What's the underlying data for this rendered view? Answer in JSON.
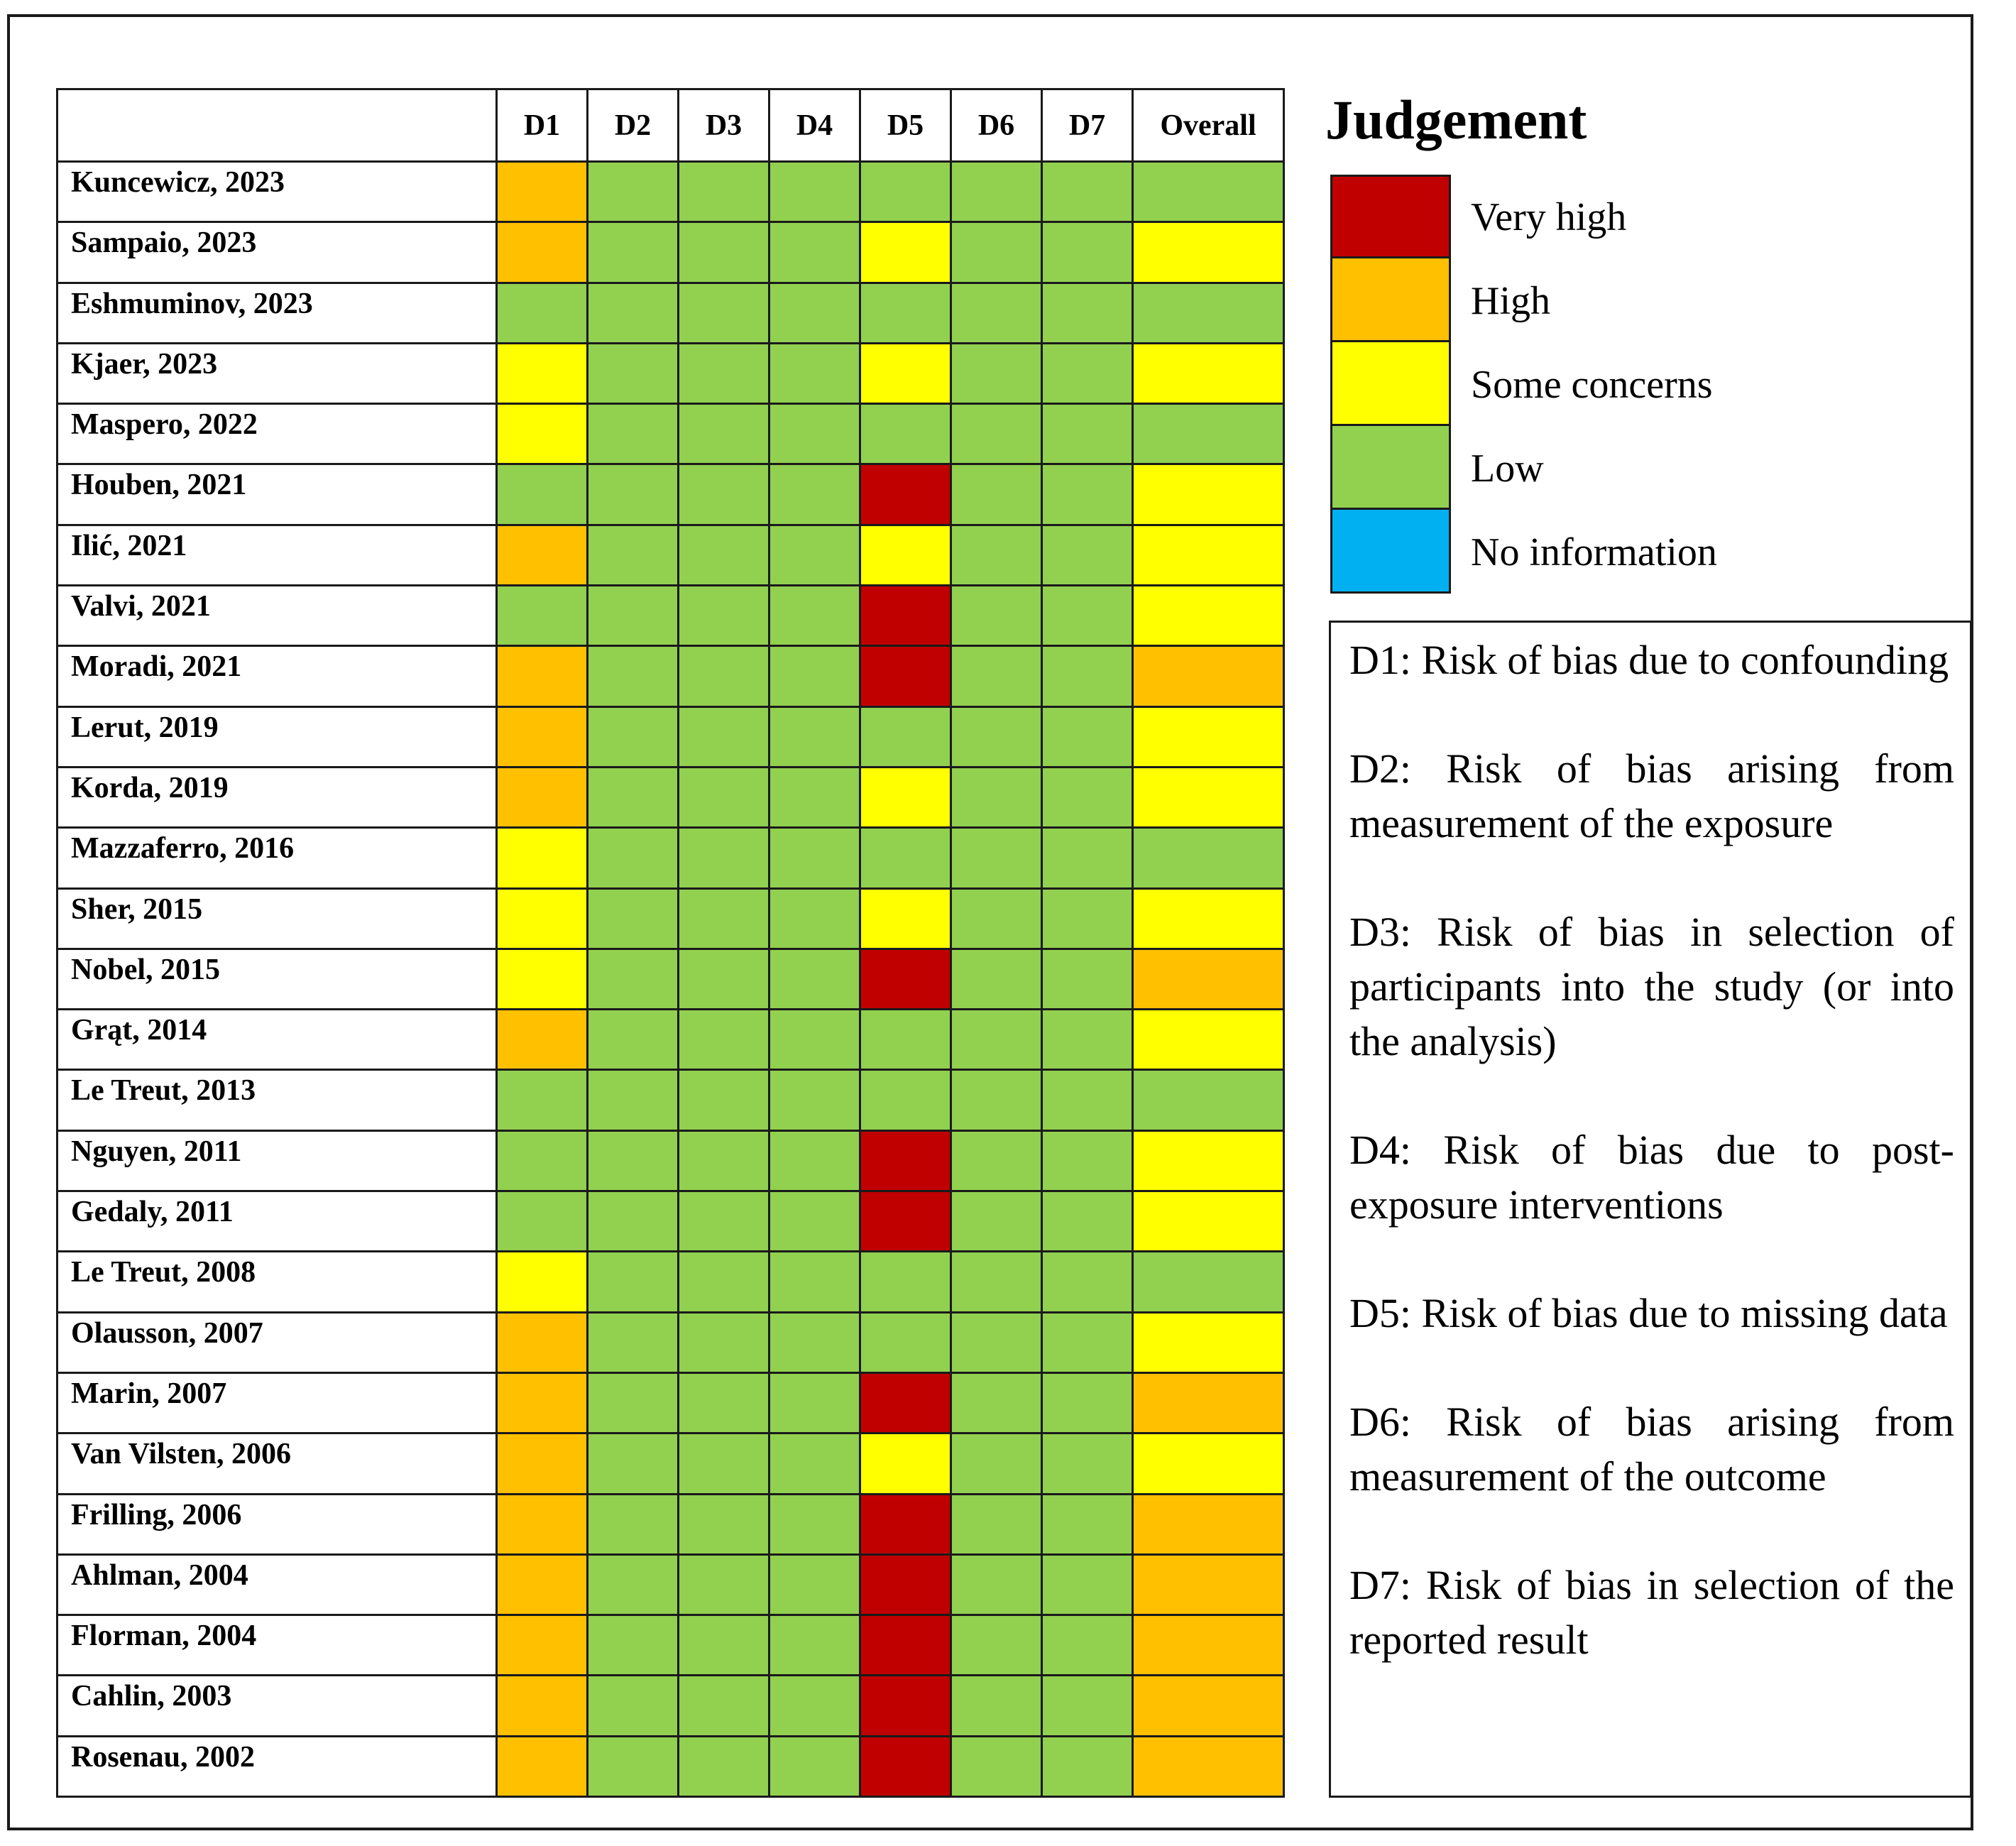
{
  "chart_data": {
    "type": "table",
    "columns": [
      "D1",
      "D2",
      "D3",
      "D4",
      "D5",
      "D6",
      "D7",
      "Overall"
    ],
    "colors": {
      "very_high": "#c00000",
      "high": "#ffc000",
      "some_concerns": "#ffff00",
      "low": "#92d050",
      "no_information": "#00b0f0"
    },
    "rows": [
      {
        "study": "Kuncewicz, 2023",
        "judgements": [
          "high",
          "low",
          "low",
          "low",
          "low",
          "low",
          "low",
          "low"
        ]
      },
      {
        "study": "Sampaio, 2023",
        "judgements": [
          "high",
          "low",
          "low",
          "low",
          "some_concerns",
          "low",
          "low",
          "some_concerns"
        ]
      },
      {
        "study": "Eshmuminov, 2023",
        "judgements": [
          "low",
          "low",
          "low",
          "low",
          "low",
          "low",
          "low",
          "low"
        ]
      },
      {
        "study": "Kjaer, 2023",
        "judgements": [
          "some_concerns",
          "low",
          "low",
          "low",
          "some_concerns",
          "low",
          "low",
          "some_concerns"
        ]
      },
      {
        "study": "Maspero, 2022",
        "judgements": [
          "some_concerns",
          "low",
          "low",
          "low",
          "low",
          "low",
          "low",
          "low"
        ]
      },
      {
        "study": "Houben, 2021",
        "judgements": [
          "low",
          "low",
          "low",
          "low",
          "very_high",
          "low",
          "low",
          "some_concerns"
        ]
      },
      {
        "study": "Ilić, 2021",
        "judgements": [
          "high",
          "low",
          "low",
          "low",
          "some_concerns",
          "low",
          "low",
          "some_concerns"
        ]
      },
      {
        "study": "Valvi, 2021",
        "judgements": [
          "low",
          "low",
          "low",
          "low",
          "very_high",
          "low",
          "low",
          "some_concerns"
        ]
      },
      {
        "study": "Moradi, 2021",
        "judgements": [
          "high",
          "low",
          "low",
          "low",
          "very_high",
          "low",
          "low",
          "high"
        ]
      },
      {
        "study": "Lerut, 2019",
        "judgements": [
          "high",
          "low",
          "low",
          "low",
          "low",
          "low",
          "low",
          "some_concerns"
        ]
      },
      {
        "study": "Korda, 2019",
        "judgements": [
          "high",
          "low",
          "low",
          "low",
          "some_concerns",
          "low",
          "low",
          "some_concerns"
        ]
      },
      {
        "study": "Mazzaferro, 2016",
        "judgements": [
          "some_concerns",
          "low",
          "low",
          "low",
          "low",
          "low",
          "low",
          "low"
        ]
      },
      {
        "study": "Sher, 2015",
        "judgements": [
          "some_concerns",
          "low",
          "low",
          "low",
          "some_concerns",
          "low",
          "low",
          "some_concerns"
        ]
      },
      {
        "study": "Nobel, 2015",
        "judgements": [
          "some_concerns",
          "low",
          "low",
          "low",
          "very_high",
          "low",
          "low",
          "high"
        ]
      },
      {
        "study": "Grąt, 2014",
        "judgements": [
          "high",
          "low",
          "low",
          "low",
          "low",
          "low",
          "low",
          "some_concerns"
        ]
      },
      {
        "study": "Le Treut, 2013",
        "judgements": [
          "low",
          "low",
          "low",
          "low",
          "low",
          "low",
          "low",
          "low"
        ]
      },
      {
        "study": "Nguyen, 2011",
        "judgements": [
          "low",
          "low",
          "low",
          "low",
          "very_high",
          "low",
          "low",
          "some_concerns"
        ]
      },
      {
        "study": "Gedaly, 2011",
        "judgements": [
          "low",
          "low",
          "low",
          "low",
          "very_high",
          "low",
          "low",
          "some_concerns"
        ]
      },
      {
        "study": "Le Treut, 2008",
        "judgements": [
          "some_concerns",
          "low",
          "low",
          "low",
          "low",
          "low",
          "low",
          "low"
        ]
      },
      {
        "study": "Olausson, 2007",
        "judgements": [
          "high",
          "low",
          "low",
          "low",
          "low",
          "low",
          "low",
          "some_concerns"
        ]
      },
      {
        "study": "Marin, 2007",
        "judgements": [
          "high",
          "low",
          "low",
          "low",
          "very_high",
          "low",
          "low",
          "high"
        ]
      },
      {
        "study": "Van Vilsten, 2006",
        "judgements": [
          "high",
          "low",
          "low",
          "low",
          "some_concerns",
          "low",
          "low",
          "some_concerns"
        ]
      },
      {
        "study": "Frilling, 2006",
        "judgements": [
          "high",
          "low",
          "low",
          "low",
          "very_high",
          "low",
          "low",
          "high"
        ]
      },
      {
        "study": "Ahlman, 2004",
        "judgements": [
          "high",
          "low",
          "low",
          "low",
          "very_high",
          "low",
          "low",
          "high"
        ]
      },
      {
        "study": "Florman, 2004",
        "judgements": [
          "high",
          "low",
          "low",
          "low",
          "very_high",
          "low",
          "low",
          "high"
        ]
      },
      {
        "study": "Cahlin, 2003",
        "judgements": [
          "high",
          "low",
          "low",
          "low",
          "very_high",
          "low",
          "low",
          "high"
        ]
      },
      {
        "study": "Rosenau, 2002",
        "judgements": [
          "high",
          "low",
          "low",
          "low",
          "very_high",
          "low",
          "low",
          "high"
        ]
      }
    ],
    "legend": {
      "title": "Judgement",
      "items": [
        {
          "key": "very_high",
          "label": "Very high"
        },
        {
          "key": "high",
          "label": "High"
        },
        {
          "key": "some_concerns",
          "label": "Some concerns"
        },
        {
          "key": "low",
          "label": "Low"
        },
        {
          "key": "no_information",
          "label": "No information"
        }
      ]
    },
    "definitions": [
      "D1: Risk of bias due to confounding",
      "D2: Risk of bias arising from measurement of the exposure",
      "D3: Risk of bias in selection of participants into the study (or into the analysis)",
      "D4: Risk of bias due to post-exposure interventions",
      "D5: Risk of bias due to missing data",
      "D6: Risk of bias arising from measurement of the outcome",
      "D7: Risk of bias in selection of the reported result"
    ]
  }
}
